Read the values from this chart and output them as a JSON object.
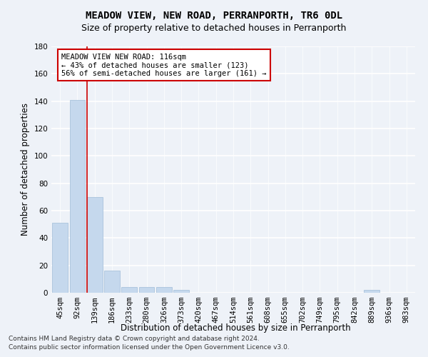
{
  "title": "MEADOW VIEW, NEW ROAD, PERRANPORTH, TR6 0DL",
  "subtitle": "Size of property relative to detached houses in Perranporth",
  "xlabel": "Distribution of detached houses by size in Perranporth",
  "ylabel": "Number of detached properties",
  "bar_color": "#c5d8ed",
  "bar_edge_color": "#a0bcd8",
  "categories": [
    "45sqm",
    "92sqm",
    "139sqm",
    "186sqm",
    "233sqm",
    "280sqm",
    "326sqm",
    "373sqm",
    "420sqm",
    "467sqm",
    "514sqm",
    "561sqm",
    "608sqm",
    "655sqm",
    "702sqm",
    "749sqm",
    "795sqm",
    "842sqm",
    "889sqm",
    "936sqm",
    "983sqm"
  ],
  "values": [
    51,
    141,
    70,
    16,
    4,
    4,
    4,
    2,
    0,
    0,
    0,
    0,
    0,
    0,
    0,
    0,
    0,
    0,
    2,
    0,
    0
  ],
  "ylim": [
    0,
    180
  ],
  "yticks": [
    0,
    20,
    40,
    60,
    80,
    100,
    120,
    140,
    160,
    180
  ],
  "property_line_x": 1.57,
  "property_line_color": "#cc0000",
  "annotation_text": "MEADOW VIEW NEW ROAD: 116sqm\n← 43% of detached houses are smaller (123)\n56% of semi-detached houses are larger (161) →",
  "annotation_box_color": "#ffffff",
  "annotation_box_edge_color": "#cc0000",
  "footer_line1": "Contains HM Land Registry data © Crown copyright and database right 2024.",
  "footer_line2": "Contains public sector information licensed under the Open Government Licence v3.0.",
  "background_color": "#eef2f8",
  "grid_color": "#ffffff",
  "title_fontsize": 10,
  "subtitle_fontsize": 9,
  "label_fontsize": 8.5,
  "tick_fontsize": 7.5,
  "annotation_fontsize": 7.5,
  "footer_fontsize": 6.5
}
